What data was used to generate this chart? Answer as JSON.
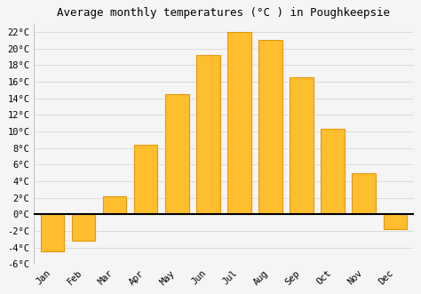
{
  "title": "Average monthly temperatures (°C ) in Poughkeepsie",
  "months": [
    "Jan",
    "Feb",
    "Mar",
    "Apr",
    "May",
    "Jun",
    "Jul",
    "Aug",
    "Sep",
    "Oct",
    "Nov",
    "Dec"
  ],
  "values": [
    -4.5,
    -3.2,
    2.2,
    8.4,
    14.5,
    19.2,
    22.0,
    21.0,
    16.5,
    10.3,
    5.0,
    -1.8
  ],
  "bar_face_color": "#FFBE2D",
  "bar_edge_color": "#E8960A",
  "ylim": [
    -6,
    23
  ],
  "yticks": [
    -6,
    -4,
    -2,
    0,
    2,
    4,
    6,
    8,
    10,
    12,
    14,
    16,
    18,
    20,
    22
  ],
  "background_color": "#f5f5f5",
  "plot_bg_color": "#f5f5f5",
  "grid_color": "#d8d8d8",
  "title_fontsize": 9,
  "tick_fontsize": 7.5,
  "bar_width": 0.75
}
